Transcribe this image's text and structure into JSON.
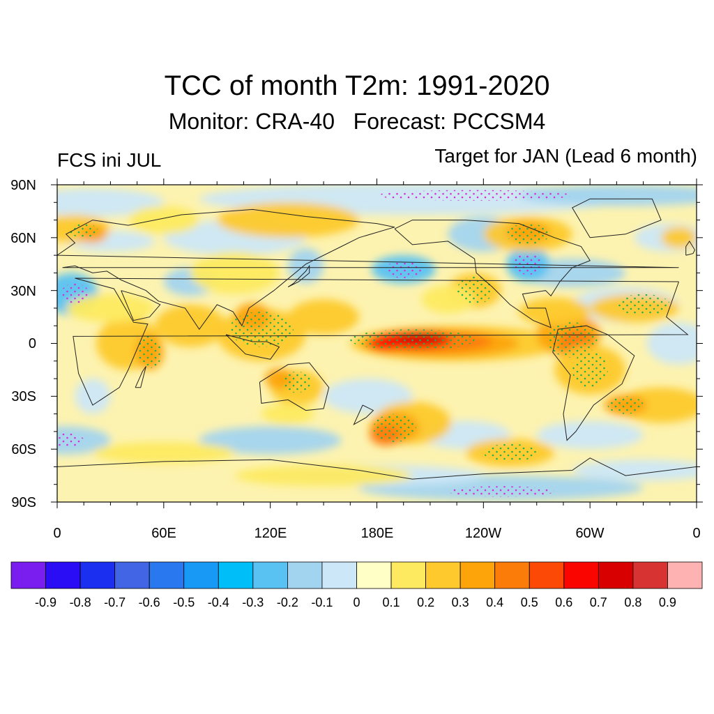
{
  "title": "TCC of month T2m: 1991-2020",
  "subtitle": "Monitor: CRA-40   Forecast: PCCSM4",
  "left_label": "FCS ini JUL",
  "right_label": "Target for JAN (Lead 6 month)",
  "lat_labels": [
    "90N",
    "60N",
    "30N",
    "0",
    "30S",
    "60S",
    "90S"
  ],
  "lon_labels": [
    "0",
    "60E",
    "120E",
    "180E",
    "120W",
    "60W",
    "0"
  ],
  "colorbar": {
    "colors": [
      "#7a1eef",
      "#2a0cf5",
      "#1b2ff0",
      "#4265e6",
      "#2a78f0",
      "#1799f5",
      "#00bff8",
      "#5ac2f2",
      "#a3d4ef",
      "#cce7f7",
      "#ffffc6",
      "#fdea60",
      "#fdc92d",
      "#fca40a",
      "#fc7c0a",
      "#fc4a06",
      "#fb0500",
      "#d80000",
      "#d73332",
      "#ffb2b2"
    ],
    "labels": [
      "-0.9",
      "-0.8",
      "-0.7",
      "-0.6",
      "-0.5",
      "-0.4",
      "-0.3",
      "-0.2",
      "-0.1",
      "0",
      "0.1",
      "0.2",
      "0.3",
      "0.4",
      "0.5",
      "0.6",
      "0.7",
      "0.8",
      "0.9"
    ]
  },
  "field_colors": {
    "neutral": "#fdf3b0",
    "light_blue": "#cce7f7",
    "blue": "#a3d4ef",
    "mid_blue": "#5ac2f2",
    "deep_blue": "#2a78f0",
    "yellow": "#fdea60",
    "gold": "#fdc92d",
    "orange": "#fca40a",
    "dark_orange": "#fc7c0a",
    "red": "#fb0500",
    "dark_red": "#d80000",
    "coast": "#222222",
    "stipple_green": "#22b14c",
    "stipple_magenta": "#d62fd6"
  }
}
